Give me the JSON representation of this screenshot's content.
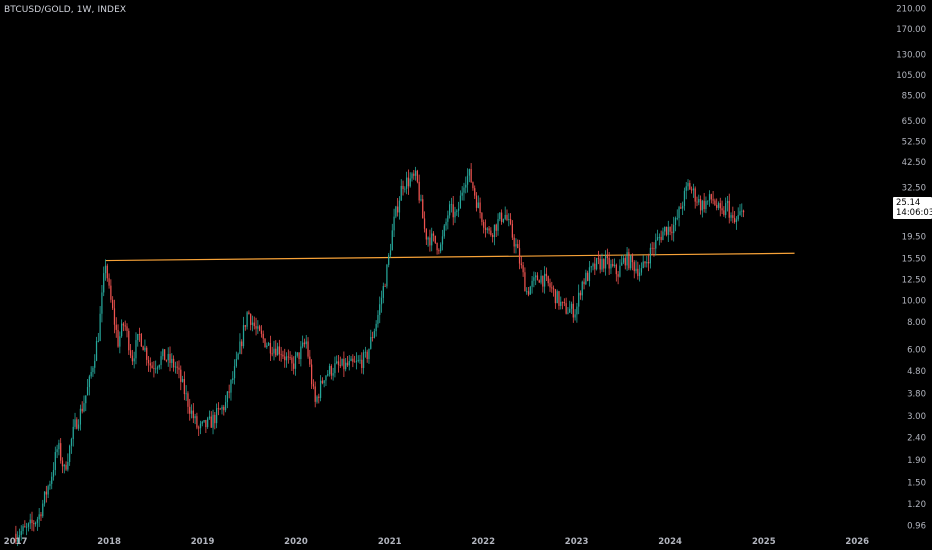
{
  "header": {
    "symbol_line": "BTCUSD/GOLD, 1W, INDEX"
  },
  "price_tag": {
    "price": "25.14",
    "countdown": "14:06:03"
  },
  "colors": {
    "up": "#26a69a",
    "down": "#ef5350",
    "trendline": "#f7a238",
    "background": "#000000"
  },
  "chart_data": {
    "type": "candlestick",
    "y_scale": "log",
    "ylim": [
      0.86,
      230
    ],
    "xlim": [
      "2016-11-01",
      "2026-05-01"
    ],
    "x_tick_labels": [
      "2017",
      "2018",
      "2019",
      "2020",
      "2021",
      "2022",
      "2023",
      "2024",
      "2025",
      "2026"
    ],
    "y_tick_labels": [
      "210.00",
      "170.00",
      "130.00",
      "105.00",
      "85.00",
      "65.00",
      "52.50",
      "42.50",
      "32.50",
      "19.50",
      "15.50",
      "12.50",
      "10.00",
      "8.00",
      "6.00",
      "4.80",
      "3.80",
      "3.00",
      "2.40",
      "1.90",
      "1.50",
      "1.20",
      "0.96"
    ],
    "last_price": 25.14,
    "trendline": {
      "start": [
        "2017-12-18",
        15.2
      ],
      "end": [
        "2025-05-01",
        16.4
      ]
    },
    "close_path": [
      [
        "2017-01-02",
        0.88
      ],
      [
        "2017-02-15",
        0.92
      ],
      [
        "2017-04-01",
        1.05
      ],
      [
        "2017-05-20",
        1.6
      ],
      [
        "2017-06-15",
        2.2
      ],
      [
        "2017-07-10",
        1.7
      ],
      [
        "2017-08-20",
        2.7
      ],
      [
        "2017-09-15",
        3.2
      ],
      [
        "2017-10-15",
        4.2
      ],
      [
        "2017-11-20",
        7.0
      ],
      [
        "2017-12-18",
        15.0
      ],
      [
        "2018-01-01",
        11.0
      ],
      [
        "2018-02-05",
        6.5
      ],
      [
        "2018-03-01",
        8.0
      ],
      [
        "2018-04-01",
        5.5
      ],
      [
        "2018-05-01",
        7.0
      ],
      [
        "2018-06-15",
        5.0
      ],
      [
        "2018-08-01",
        5.6
      ],
      [
        "2018-09-20",
        5.0
      ],
      [
        "2018-11-15",
        3.2
      ],
      [
        "2018-12-15",
        2.6
      ],
      [
        "2019-02-01",
        2.8
      ],
      [
        "2019-04-01",
        3.4
      ],
      [
        "2019-05-15",
        5.2
      ],
      [
        "2019-06-26",
        9.0
      ],
      [
        "2019-08-01",
        7.2
      ],
      [
        "2019-09-15",
        6.3
      ],
      [
        "2019-11-01",
        6.0
      ],
      [
        "2019-12-15",
        5.0
      ],
      [
        "2020-02-10",
        6.5
      ],
      [
        "2020-03-15",
        3.4
      ],
      [
        "2020-04-20",
        4.6
      ],
      [
        "2020-06-01",
        5.0
      ],
      [
        "2020-08-15",
        5.1
      ],
      [
        "2020-10-01",
        5.5
      ],
      [
        "2020-11-15",
        8.5
      ],
      [
        "2020-12-20",
        13.5
      ],
      [
        "2021-01-15",
        22.0
      ],
      [
        "2021-02-20",
        34.0
      ],
      [
        "2021-04-15",
        36.0
      ],
      [
        "2021-05-20",
        20.0
      ],
      [
        "2021-07-20",
        17.5
      ],
      [
        "2021-08-20",
        26.0
      ],
      [
        "2021-09-20",
        24.0
      ],
      [
        "2021-10-20, ",
        36.0
      ],
      [
        "2021-11-10",
        37.0
      ],
      [
        "2021-12-15",
        26.0
      ],
      [
        "2022-01-25",
        20.0
      ],
      [
        "2022-03-25",
        25.0
      ],
      [
        "2022-05-10",
        17.5
      ],
      [
        "2022-06-20",
        11.0
      ],
      [
        "2022-08-10",
        13.0
      ],
      [
        "2022-09-20",
        11.5
      ],
      [
        "2022-11-10",
        9.2
      ],
      [
        "2022-12-30",
        9.0
      ],
      [
        "2023-01-20",
        12.0
      ],
      [
        "2023-03-20",
        14.5
      ],
      [
        "2023-04-20",
        15.0
      ],
      [
        "2023-06-10",
        13.3
      ],
      [
        "2023-07-10",
        15.6
      ],
      [
        "2023-09-10",
        13.5
      ],
      [
        "2023-10-20",
        17.0
      ],
      [
        "2023-12-10",
        21.0
      ],
      [
        "2024-01-20",
        22.0
      ],
      [
        "2024-03-12",
        33.5
      ],
      [
        "2024-05-01",
        27.0
      ],
      [
        "2024-06-15",
        29.0
      ],
      [
        "2024-07-20",
        24.0
      ],
      [
        "2024-08-10",
        27.5
      ],
      [
        "2024-09-05",
        22.0
      ],
      [
        "2024-10-01",
        24.5
      ],
      [
        "2024-10-15",
        25.14
      ]
    ]
  }
}
